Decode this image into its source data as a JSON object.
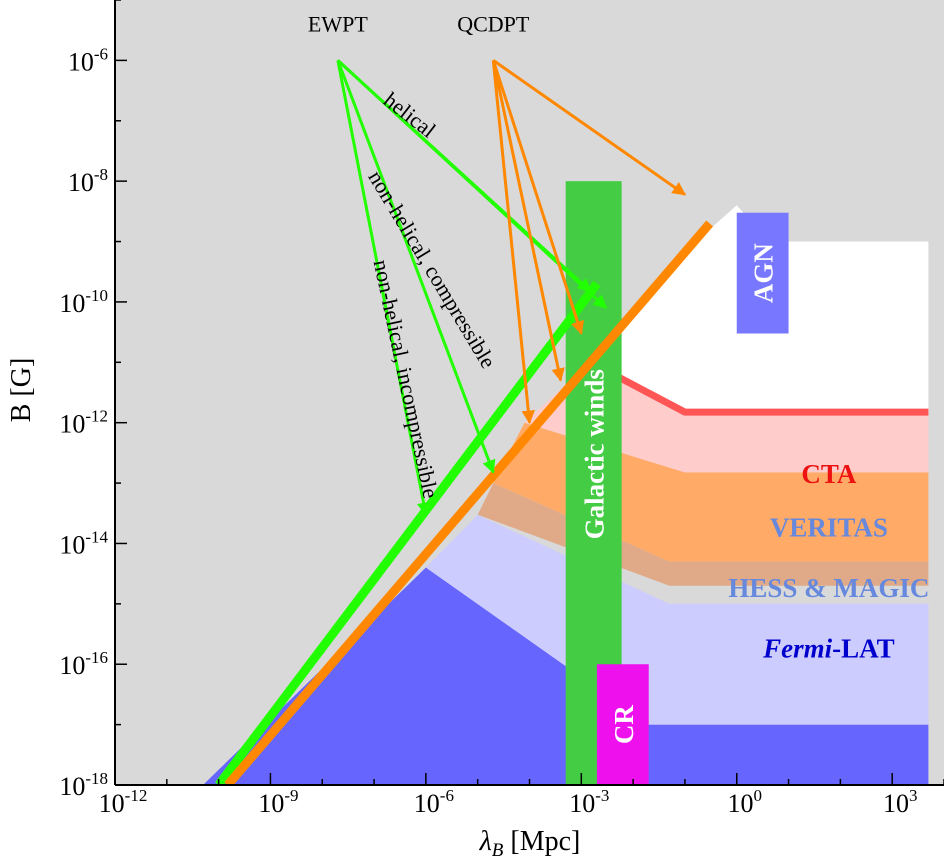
{
  "chart_data": {
    "type": "area",
    "title": "",
    "xlabel": "λ_B [Mpc]",
    "ylabel": "B [G]",
    "x_scale": "log",
    "y_scale": "log",
    "xlim": [
      1e-12,
      10000
    ],
    "ylim": [
      1e-18,
      1e-05
    ],
    "x_ticks": [
      {
        "base": "10",
        "exp": "-12"
      },
      {
        "base": "10",
        "exp": "-9"
      },
      {
        "base": "10",
        "exp": "-6"
      },
      {
        "base": "10",
        "exp": "-3"
      },
      {
        "base": "10",
        "exp": "0"
      },
      {
        "base": "10",
        "exp": "3"
      }
    ],
    "x_tick_values": [
      1e-12,
      1e-09,
      1e-06,
      0.001,
      1,
      1000
    ],
    "y_ticks": [
      {
        "base": "10",
        "exp": "-6"
      },
      {
        "base": "10",
        "exp": "-8"
      },
      {
        "base": "10",
        "exp": "-10"
      },
      {
        "base": "10",
        "exp": "-12"
      },
      {
        "base": "10",
        "exp": "-14"
      },
      {
        "base": "10",
        "exp": "-16"
      },
      {
        "base": "10",
        "exp": "-18"
      }
    ],
    "y_tick_values": [
      1e-06,
      1e-08,
      1e-10,
      1e-12,
      1e-14,
      1e-16,
      1e-18
    ],
    "colors": {
      "background": "#d9d9d9",
      "allowed": "#ffffff",
      "fermi": "#6666ff",
      "fermi_light": "#ccccff",
      "veritas": "#ffaa66",
      "hess": "#e0aa88",
      "cta": "#ffcccc",
      "cta_line": "#ff5555",
      "green": "#22ff00",
      "orange": "#ff8800",
      "galactic": "#44cc44",
      "agn": "#7777ff",
      "cr": "#ee11ee"
    },
    "regions": [
      {
        "id": "fermi-lat-strong",
        "label_prefix": "Fermi",
        "label_suffix": "-LAT",
        "color": "#6666ff",
        "vertices": [
          [
            5e-11,
            1e-18
          ],
          [
            1e-06,
            4e-15
          ],
          [
            0.02,
            1e-17
          ],
          [
            5000,
            1e-17
          ],
          [
            5000,
            1e-18
          ]
        ]
      },
      {
        "id": "fermi-lat-weak",
        "color": "#ccccff",
        "vertices": [
          [
            1e-06,
            4e-15
          ],
          [
            1e-05,
            3e-14
          ],
          [
            0.05,
            1e-15
          ],
          [
            5000,
            1e-15
          ],
          [
            5000,
            1e-17
          ],
          [
            0.02,
            1e-17
          ]
        ]
      },
      {
        "id": "hess-magic",
        "label": "HESS & MAGIC",
        "color": "#e0aa88",
        "vertices": [
          [
            1e-05,
            3e-14
          ],
          [
            2e-05,
            1e-13
          ],
          [
            0.05,
            5e-15
          ],
          [
            5000,
            5e-15
          ],
          [
            5000,
            2e-15
          ],
          [
            0.05,
            2e-15
          ]
        ]
      },
      {
        "id": "veritas",
        "label": "VERITAS",
        "color": "#ffaa66",
        "vertices": [
          [
            2e-05,
            1e-13
          ],
          [
            8e-05,
            1e-12
          ],
          [
            0.1,
            1.5e-13
          ],
          [
            5000,
            1.5e-13
          ],
          [
            5000,
            5e-15
          ],
          [
            0.05,
            5e-15
          ]
        ]
      },
      {
        "id": "cta",
        "label": "CTA",
        "color": "#ffcccc",
        "vertices": [
          [
            8e-05,
            1e-12
          ],
          [
            0.0015,
            1e-11
          ],
          [
            0.1,
            1.5e-12
          ],
          [
            5000,
            1.5e-12
          ],
          [
            5000,
            1.5e-13
          ],
          [
            0.1,
            1.5e-13
          ]
        ]
      },
      {
        "id": "allowed",
        "color": "#ffffff",
        "vertices": [
          [
            0.0015,
            1e-11
          ],
          [
            0.3,
            1.6e-09
          ],
          [
            1,
            4e-09
          ],
          [
            4,
            1e-09
          ],
          [
            5000,
            1e-09
          ],
          [
            5000,
            1.5e-12
          ],
          [
            0.1,
            1.5e-12
          ]
        ]
      }
    ],
    "cta_line": [
      [
        0.0015,
        1e-11
      ],
      [
        0.1,
        1.5e-12
      ],
      [
        5000,
        1.5e-12
      ]
    ],
    "bands": [
      {
        "id": "galactic-winds",
        "label": "Galactic winds",
        "x_range": [
          0.0005,
          0.006
        ],
        "y_range": [
          1e-18,
          1e-08
        ],
        "color": "#44cc44"
      },
      {
        "id": "agn",
        "label": "AGN",
        "x_range": [
          1,
          10
        ],
        "y_range": [
          3e-11,
          3e-09
        ],
        "color": "#7777ff"
      },
      {
        "id": "cr",
        "label": "CR",
        "x_range": [
          0.002,
          0.02
        ],
        "y_range": [
          1e-18,
          1e-16
        ],
        "color": "#ee11ee"
      }
    ],
    "series": [
      {
        "id": "green-line",
        "color": "#22ff00",
        "x": [
          1e-10,
          0.002
        ],
        "y": [
          1e-18,
          2e-10
        ]
      },
      {
        "id": "orange-line",
        "color": "#ff8800",
        "x": [
          1.5e-10,
          0.3
        ],
        "y": [
          1e-18,
          2e-09
        ]
      }
    ],
    "annotations": [
      {
        "text": "EWPT",
        "at": [
          2e-08,
          3e-06
        ]
      },
      {
        "text": "QCDPT",
        "at": [
          2e-05,
          3e-06
        ]
      },
      {
        "text": "helical",
        "at": [
          4e-07,
          1e-07
        ],
        "rotate": 38
      },
      {
        "text": "non-helical, compressible",
        "at": [
          1e-06,
          3e-10
        ],
        "rotate": 59
      },
      {
        "text": "non-helical, incompressible",
        "at": [
          3e-07,
          5e-12
        ],
        "rotate": 78
      }
    ],
    "arrows": [
      {
        "from_label": "EWPT",
        "from": [
          2e-08,
          1e-06
        ],
        "to": [
          1e-06,
          3e-14
        ],
        "color": "#22ff00"
      },
      {
        "from_label": "EWPT",
        "from": [
          2e-08,
          1e-06
        ],
        "to": [
          2e-05,
          1.5e-13
        ],
        "color": "#22ff00"
      },
      {
        "from_label": "EWPT",
        "from": [
          2e-08,
          1e-06
        ],
        "to": [
          0.0015,
          1.5e-10
        ],
        "color": "#22ff00"
      },
      {
        "from_label": "EWPT",
        "from": [
          2e-08,
          1e-06
        ],
        "to": [
          0.003,
          8e-11
        ],
        "color": "#22ff00"
      },
      {
        "from_label": "QCDPT",
        "from": [
          2e-05,
          1e-06
        ],
        "to": [
          0.0001,
          1e-12
        ],
        "color": "#ff8800"
      },
      {
        "from_label": "QCDPT",
        "from": [
          2e-05,
          1e-06
        ],
        "to": [
          0.0004,
          5e-12
        ],
        "color": "#ff8800"
      },
      {
        "from_label": "QCDPT",
        "from": [
          2e-05,
          1e-06
        ],
        "to": [
          0.001,
          3e-11
        ],
        "color": "#ff8800"
      },
      {
        "from_label": "QCDPT",
        "from": [
          2e-05,
          1e-06
        ],
        "to": [
          0.1,
          6e-09
        ],
        "color": "#ff8800"
      }
    ],
    "label_positions": {
      "cta": [
        60,
        1e-13
      ],
      "veritas": [
        60,
        1.3e-14
      ],
      "hess-magic": [
        60,
        1.3e-15
      ],
      "fermi-lat": [
        60,
        1.3e-16
      ]
    },
    "label_colors": {
      "cta": "#ee1111",
      "veritas": "#6688dd",
      "hess-magic": "#6688dd",
      "fermi-lat": "#0000cc"
    }
  }
}
